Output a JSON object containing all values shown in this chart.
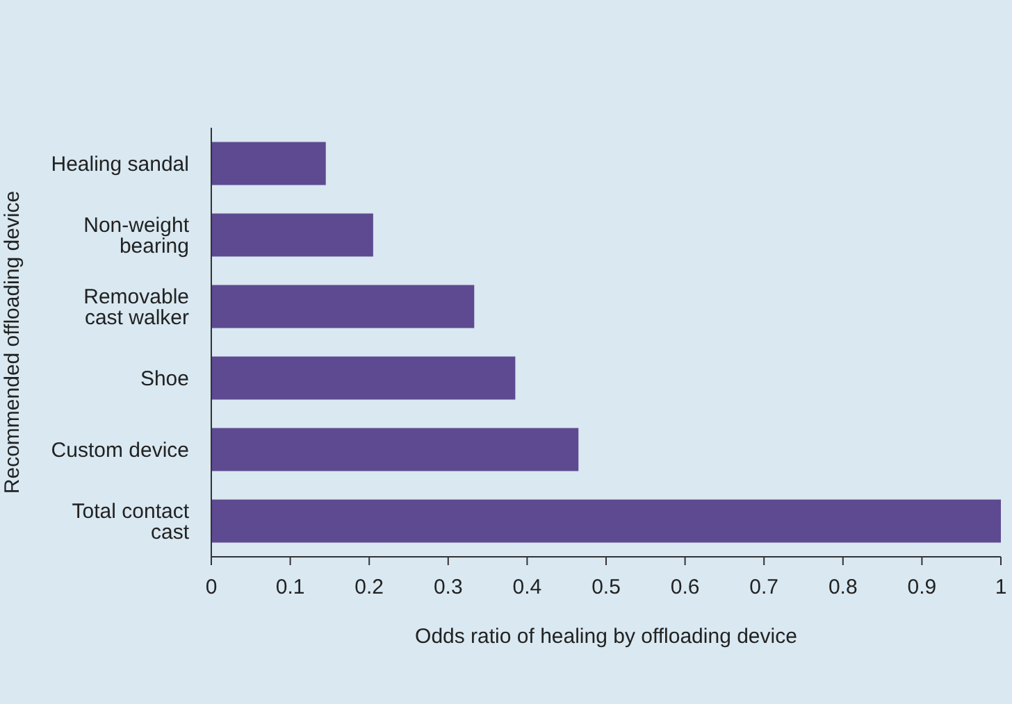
{
  "chart_data": {
    "type": "bar",
    "orientation": "horizontal",
    "xlabel": "Odds ratio of healing by offloading device",
    "ylabel": "Recommended offloading device",
    "categories": [
      "Healing sandal",
      "Non-weight bearing",
      "Removable cast walker",
      "Shoe",
      "Custom device",
      "Total contact cast"
    ],
    "values": [
      0.145,
      0.205,
      0.333,
      0.385,
      0.465,
      1.0
    ],
    "color": "#5e4a91",
    "xlim": [
      0,
      1
    ],
    "xticks": [
      0,
      0.1,
      0.2,
      0.3,
      0.4,
      0.5,
      0.6,
      0.7,
      0.8,
      0.9,
      1
    ],
    "grid": false,
    "legend": false
  }
}
